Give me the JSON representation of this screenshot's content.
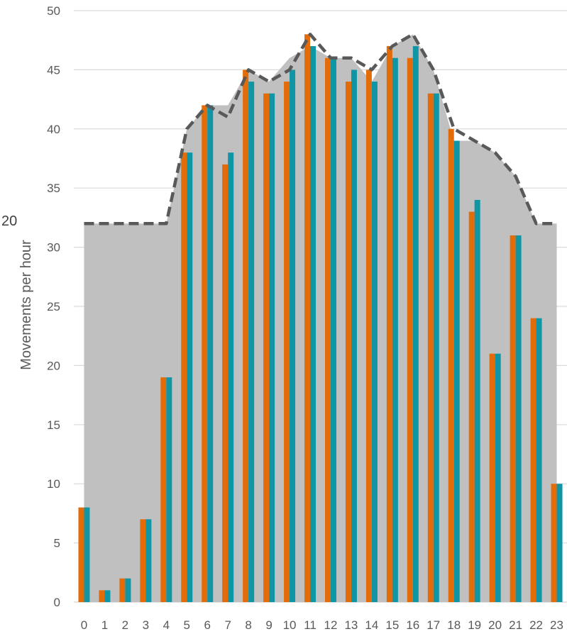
{
  "chart_data": {
    "type": "bar",
    "ylabel": "Movements per hour",
    "xlabel": "",
    "ylim": [
      0,
      50
    ],
    "ytick_step": 5,
    "grid": true,
    "stray_label": "20",
    "categories": [
      "0",
      "1",
      "2",
      "3",
      "4",
      "5",
      "6",
      "7",
      "8",
      "9",
      "10",
      "11",
      "12",
      "13",
      "14",
      "15",
      "16",
      "17",
      "18",
      "19",
      "20",
      "21",
      "22",
      "23"
    ],
    "series": [
      {
        "type": "bar",
        "color": "#E36C09",
        "values": [
          8,
          1,
          2,
          7,
          19,
          38,
          42,
          37,
          45,
          43,
          44,
          48,
          46,
          44,
          45,
          47,
          46,
          43,
          40,
          33,
          21,
          31,
          24,
          10
        ]
      },
      {
        "type": "bar",
        "color": "#1095A5",
        "values": [
          8,
          1,
          2,
          7,
          19,
          38,
          42,
          38,
          44,
          43,
          45,
          47,
          46,
          45,
          44,
          46,
          47,
          43,
          39,
          34,
          21,
          31,
          24,
          10
        ]
      },
      {
        "type": "area",
        "color": "#C0C0C0",
        "values": [
          32,
          32,
          32,
          32,
          32,
          40,
          42,
          42,
          45,
          44,
          46,
          47,
          46,
          46,
          44,
          47,
          48,
          45,
          39,
          39,
          38,
          36,
          32,
          32
        ]
      },
      {
        "type": "line",
        "color": "#595959",
        "dashed": true,
        "values": [
          32,
          32,
          32,
          32,
          32,
          40,
          42,
          41,
          45,
          44,
          45,
          48,
          46,
          46,
          45,
          47,
          48,
          45,
          40,
          39,
          38,
          36,
          32,
          32
        ]
      }
    ]
  }
}
